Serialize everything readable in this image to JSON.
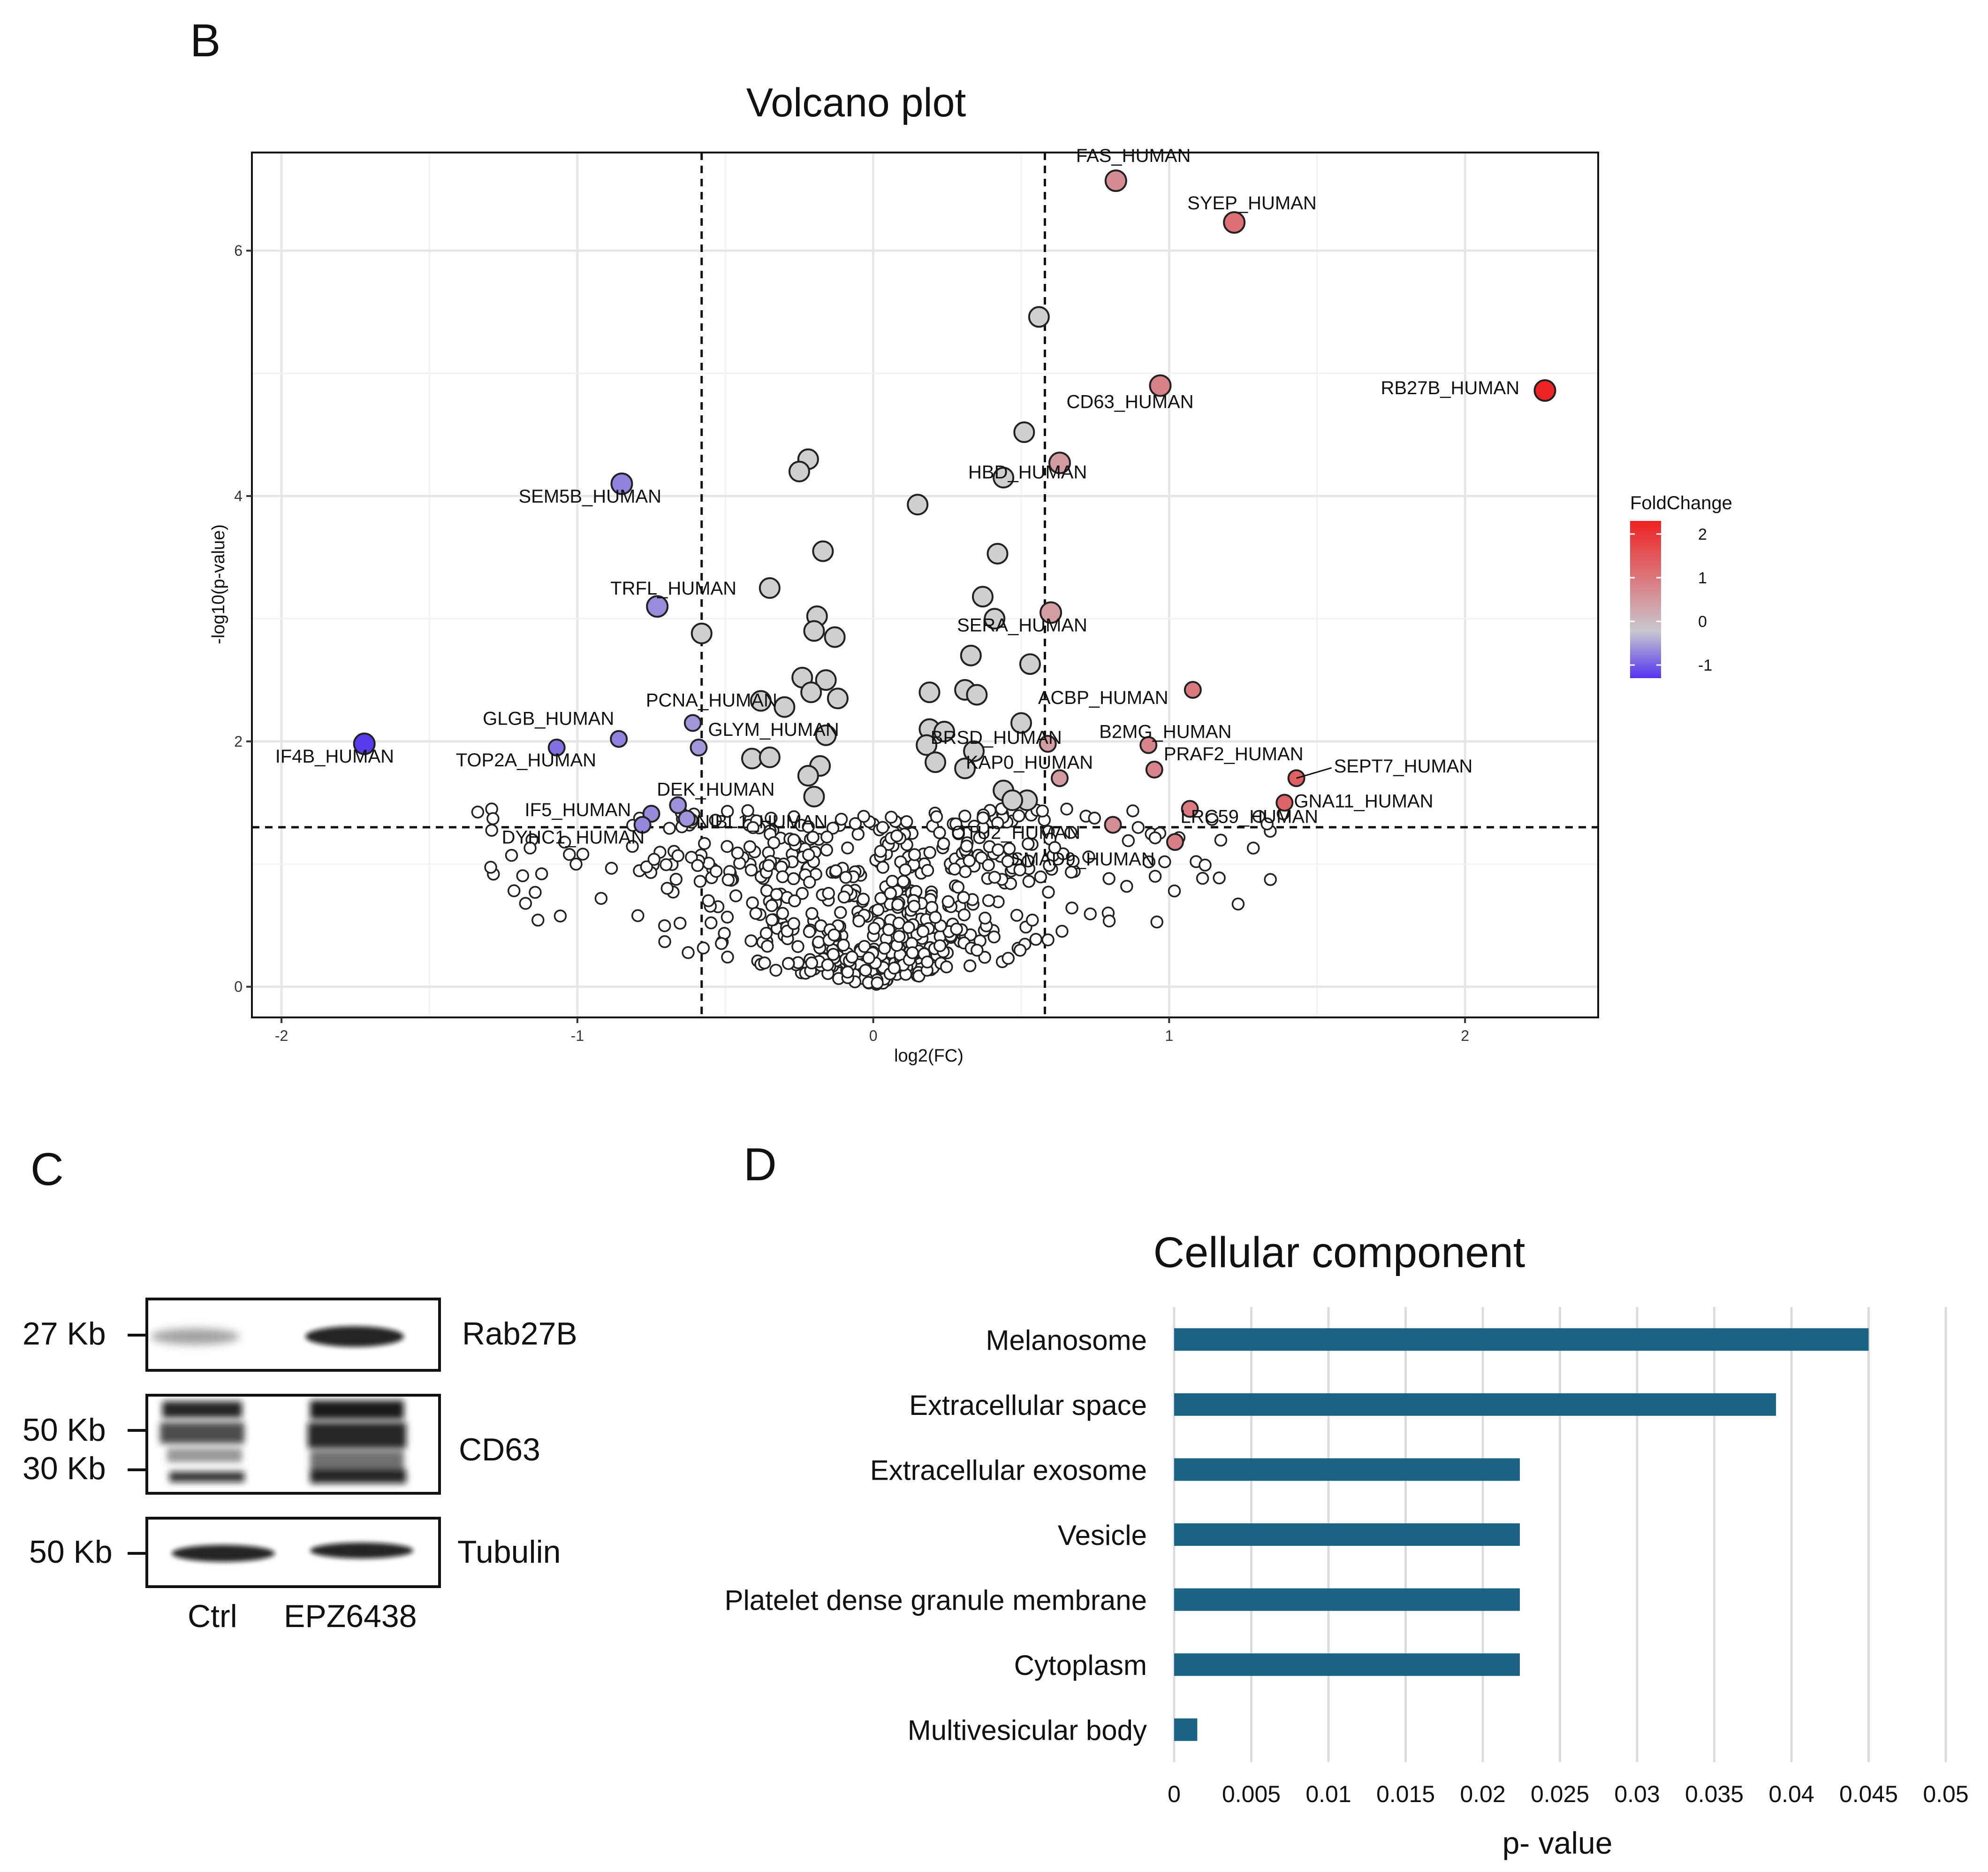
{
  "panels": {
    "b": "B",
    "c": "C",
    "d": "D"
  },
  "volcano": {
    "title": "Volcano plot",
    "xlabel": "log2(FC)",
    "ylabel": "-log10(p-value)",
    "xticks": [
      "-2",
      "-1",
      "0",
      "1",
      "2"
    ],
    "yticks": [
      "0",
      "2",
      "4",
      "6"
    ],
    "legend": {
      "title": "FoldChange",
      "ticks": [
        "2",
        "1",
        "0",
        "-1"
      ]
    }
  },
  "westernblot": {
    "bands": [
      {
        "protein": "Rab27B",
        "markers": [
          "27 Kb"
        ]
      },
      {
        "protein": "CD63",
        "markers": [
          "50 Kb",
          "30 Kb"
        ]
      },
      {
        "protein": "Tubulin",
        "markers": [
          "50 Kb"
        ]
      }
    ],
    "lanes": [
      "Ctrl",
      "EPZ6438"
    ]
  },
  "gobar": {
    "title": "Cellular component",
    "xlabel": "p- value",
    "xticks": [
      "0",
      "0.005",
      "0.01",
      "0.015",
      "0.02",
      "0.025",
      "0.03",
      "0.035",
      "0.04",
      "0.045",
      "0.05"
    ]
  },
  "chart_data": [
    {
      "type": "scatter",
      "title": "Volcano plot",
      "xlabel": "log2(FC)",
      "ylabel": "-log10(p-value)",
      "xlim": [
        -2.1,
        2.45
      ],
      "ylim": [
        -0.25,
        6.8
      ],
      "thresholds": {
        "x": [
          -0.58,
          0.58
        ],
        "y": 1.3
      },
      "grid": true,
      "legend": {
        "title": "FoldChange",
        "placement": "right",
        "colorscale": [
          "#5533ee",
          "#c8c8d0",
          "#ee2222"
        ],
        "range": [
          -1.3,
          2.3
        ]
      },
      "labeled_points": [
        {
          "label": "FAS_HUMAN",
          "x": 0.82,
          "y": 6.57
        },
        {
          "label": "SYEP_HUMAN",
          "x": 1.22,
          "y": 6.23
        },
        {
          "label": "RB27B_HUMAN",
          "x": 2.27,
          "y": 4.86
        },
        {
          "label": "CD63_HUMAN",
          "x": 0.97,
          "y": 4.9
        },
        {
          "label": "HBD_HUMAN",
          "x": 0.63,
          "y": 4.27
        },
        {
          "label": "SEM5B_HUMAN",
          "x": -0.85,
          "y": 4.1
        },
        {
          "label": "TRFL_HUMAN",
          "x": -0.73,
          "y": 3.1
        },
        {
          "label": "SERA_HUMAN",
          "x": 0.6,
          "y": 3.05
        },
        {
          "label": "ACBP_HUMAN",
          "x": 1.08,
          "y": 2.42
        },
        {
          "label": "PCNA_HUMAN",
          "x": -0.61,
          "y": 2.15
        },
        {
          "label": "GLGB_HUMAN",
          "x": -0.86,
          "y": 2.02
        },
        {
          "label": "GLYM_HUMAN",
          "x": -0.59,
          "y": 1.95
        },
        {
          "label": "IF4B_HUMAN",
          "x": -1.72,
          "y": 1.98
        },
        {
          "label": "TOP2A_HUMAN",
          "x": -1.07,
          "y": 1.95
        },
        {
          "label": "BRSD_HUMAN",
          "x": 0.59,
          "y": 1.98
        },
        {
          "label": "B2MG_HUMAN",
          "x": 0.93,
          "y": 1.97
        },
        {
          "label": "PRAF2_HUMAN",
          "x": 0.95,
          "y": 1.77
        },
        {
          "label": "KAP0_HUMAN",
          "x": 0.63,
          "y": 1.7
        },
        {
          "label": "SEPT7_HUMAN",
          "x": 1.43,
          "y": 1.7
        },
        {
          "label": "GNA11_HUMAN",
          "x": 1.39,
          "y": 1.5
        },
        {
          "label": "DEK_HUMAN",
          "x": -0.66,
          "y": 1.48
        },
        {
          "label": "IF5_HUMAN",
          "x": -0.75,
          "y": 1.41
        },
        {
          "label": "NIBL1_HUMAN",
          "x": -0.63,
          "y": 1.37
        },
        {
          "label": "DYHC1_HUMAN",
          "x": -0.78,
          "y": 1.32
        },
        {
          "label": "OTU2_HUMAN",
          "x": 0.81,
          "y": 1.32
        },
        {
          "label": "SMAD9_HUMAN",
          "x": 1.02,
          "y": 1.18
        },
        {
          "label": "LRC59_HUMAN",
          "x": 1.07,
          "y": 1.45
        }
      ]
    },
    {
      "type": "bar",
      "orientation": "horizontal",
      "title": "Cellular component",
      "xlabel": "p- value",
      "xlim": [
        0,
        0.05
      ],
      "categories": [
        "Melanosome",
        "Extracellular space",
        "Extracellular exosome",
        "Vesicle",
        "Platelet dense granule membrane",
        "Cytoplasm",
        "Multivesicular body"
      ],
      "values": [
        0.045,
        0.039,
        0.0224,
        0.0224,
        0.0224,
        0.0224,
        0.0015
      ],
      "color": "#1b6384",
      "grid": "vertical"
    }
  ]
}
